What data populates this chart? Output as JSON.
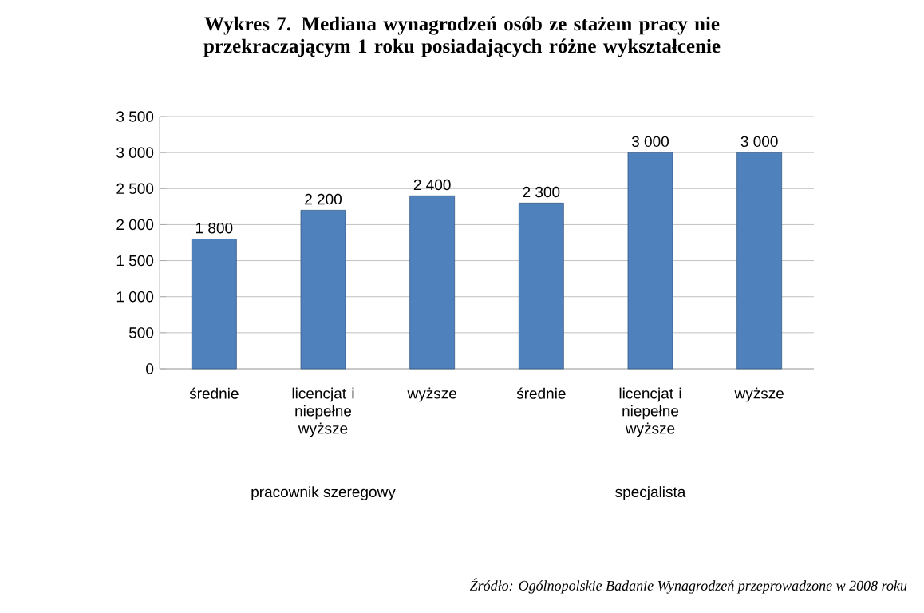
{
  "chart_data": {
    "type": "bar",
    "title": "Wykres 7. Mediana wynagrodzeń osób ze stażem pracy nie przekraczającym 1 roku posiadających różne wykształcenie",
    "categories": [
      "średnie",
      "licencjat i niepełne wyższe",
      "wyższe",
      "średnie",
      "licencjat i niepełne wyższe",
      "wyższe"
    ],
    "values": [
      1800,
      2200,
      2400,
      2300,
      3000,
      3000
    ],
    "value_labels": [
      "1 800",
      "2 200",
      "2 400",
      "2 300",
      "3 000",
      "3 000"
    ],
    "color": "#4f81bd",
    "ylim": [
      0,
      3500
    ],
    "yticks": [
      0,
      {
        "value": 500,
        "label": "500"
      },
      {
        "value": 1000,
        "label": "1 000"
      },
      {
        "value": 1500,
        "label": "1 500"
      },
      {
        "value": 2000,
        "label": "2 000"
      },
      {
        "value": 2500,
        "label": "2 500"
      },
      {
        "value": 3000,
        "label": "3 000"
      },
      {
        "value": 3500,
        "label": "3 500"
      }
    ],
    "grid": "y",
    "annotations": [
      "pracownik szeregowy",
      "specjalista",
      "*Źródło:* *Ogólnopolskie Badanie Wynagrodzeń przeprowadzone w 2008 roku*"
    ]
  }
}
